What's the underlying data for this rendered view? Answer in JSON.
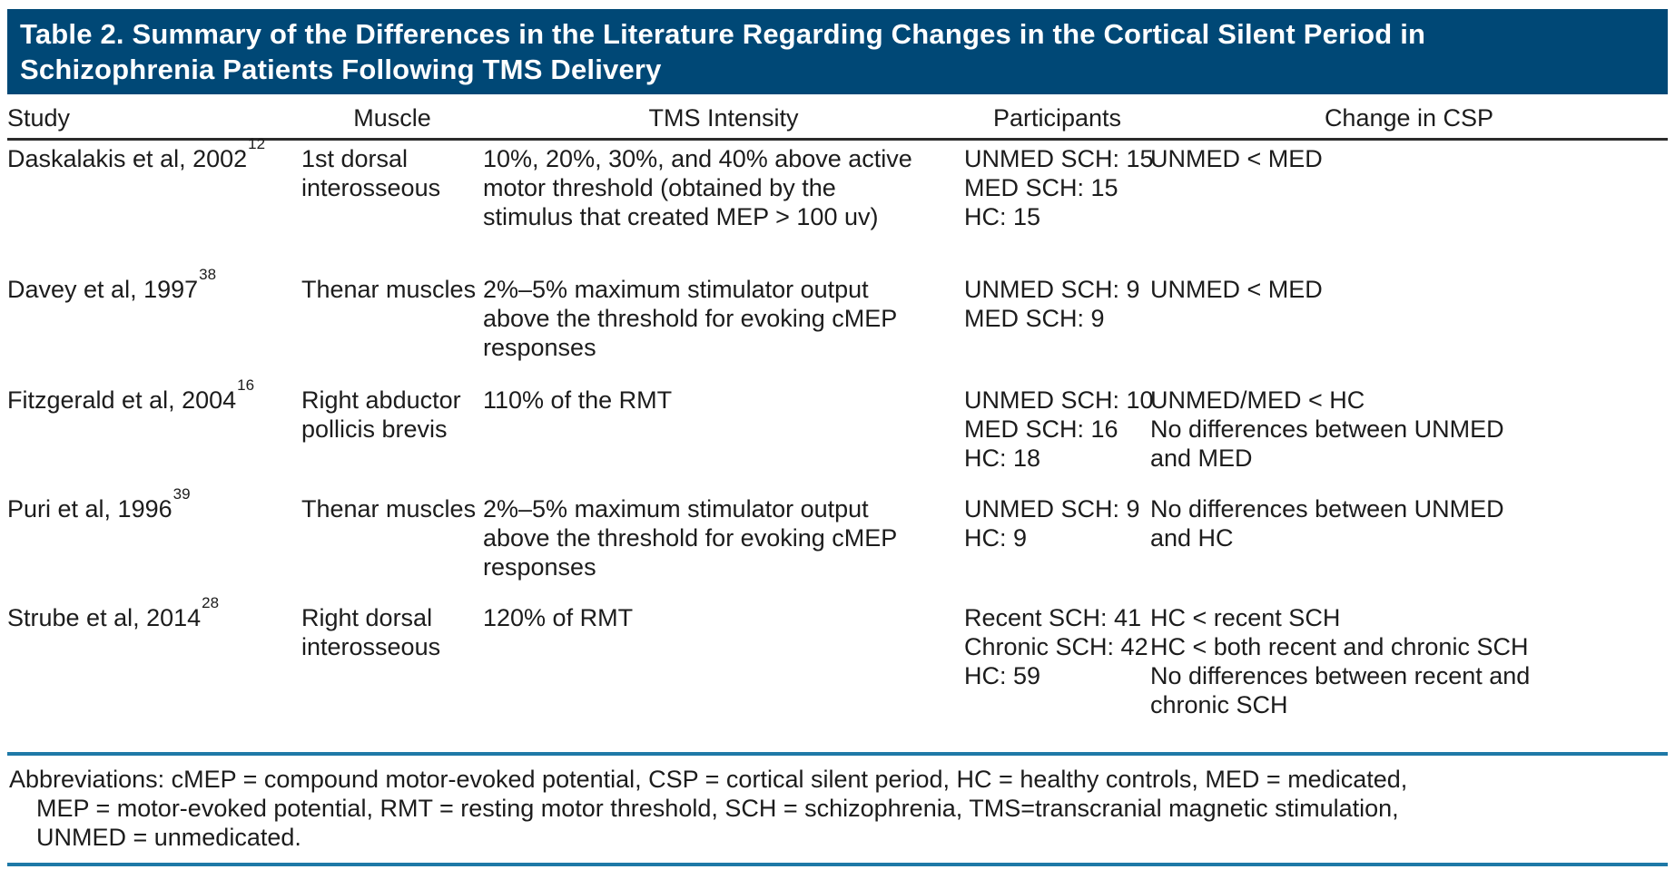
{
  "title": {
    "lines": [
      "Table 2. Summary of the Differences in the Literature Regarding Changes in the Cortical Silent Period in",
      "Schizophrenia Patients Following TMS Delivery"
    ]
  },
  "colors": {
    "header_band_bg": "#004876",
    "rule_teal": "#1e79a7",
    "rule_dark": "#2b2b2b",
    "body_text": "#1c1c1c",
    "title_text": "#ffffff"
  },
  "columns": {
    "study": "Study",
    "muscle": "Muscle",
    "tms": "TMS Intensity",
    "participants": "Participants",
    "csp": "Change in CSP"
  },
  "rows": [
    {
      "study": "Daskalakis et al, 2002",
      "ref": "12",
      "muscle": "1st dorsal interosseous",
      "tms": "10%, 20%, 30%, and 40% above active motor threshold (obtained by the stimulus that created MEP > 100 uv)",
      "participants": [
        "UNMED SCH: 15",
        "MED SCH: 15",
        "HC: 15"
      ],
      "csp": [
        "UNMED < MED"
      ]
    },
    {
      "study": "Davey et al, 1997",
      "ref": "38",
      "muscle": "Thenar muscles",
      "tms": "2%–5% maximum stimulator output above the threshold for evoking cMEP responses",
      "participants": [
        "UNMED SCH: 9",
        "MED SCH: 9"
      ],
      "csp": [
        "UNMED < MED"
      ]
    },
    {
      "study": "Fitzgerald et al, 2004",
      "ref": "16",
      "muscle": "Right abductor pollicis brevis",
      "tms": "110% of the RMT",
      "participants": [
        "UNMED SCH: 10",
        "MED SCH: 16",
        "HC: 18"
      ],
      "csp": [
        "UNMED/MED < HC",
        "No differences between UNMED and MED"
      ]
    },
    {
      "study": "Puri et al, 1996",
      "ref": "39",
      "muscle": "Thenar muscles",
      "tms": "2%–5% maximum stimulator output above the threshold for evoking cMEP responses",
      "participants": [
        "UNMED SCH: 9",
        "HC: 9"
      ],
      "csp": [
        "No differences between UNMED and HC"
      ]
    },
    {
      "study": "Strube et al, 2014",
      "ref": "28",
      "muscle": "Right dorsal interosseous",
      "tms": "120% of RMT",
      "participants": [
        "Recent SCH: 41",
        "Chronic SCH: 42",
        "HC: 59"
      ],
      "csp": [
        "HC < recent SCH",
        "HC < both recent and chronic SCH",
        "No differences between recent and chronic SCH"
      ]
    }
  ],
  "footnote": {
    "lines": [
      "Abbreviations: cMEP = compound motor-evoked potential, CSP = cortical silent period, HC = healthy controls, MED = medicated,",
      "MEP = motor-evoked potential, RMT = resting motor threshold, SCH = schizophrenia, TMS=transcranial magnetic stimulation,",
      "UNMED = unmedicated."
    ]
  }
}
